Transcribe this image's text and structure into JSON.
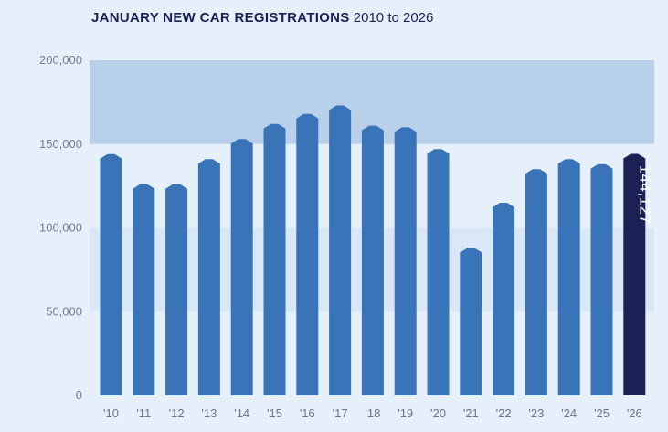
{
  "title": {
    "bold": "JANUARY NEW CAR REGISTRATIONS",
    "light": "2010 to 2026"
  },
  "colors": {
    "background": "#e6f0fb",
    "band_dark": "#b8d0ea",
    "band_light": "#d9e7f7",
    "bar": "#3a74b8",
    "highlight_bar": "#1b2154",
    "title": "#1b2154",
    "tick": "#777d86"
  },
  "chart_data": {
    "type": "bar",
    "title": "JANUARY NEW CAR REGISTRATIONS 2010 to 2026",
    "xlabel": "",
    "ylabel": "",
    "ylim": [
      0,
      200000
    ],
    "yticks": [
      0,
      50000,
      100000,
      150000,
      200000
    ],
    "ytick_labels": [
      "0",
      "50,000",
      "100,000",
      "150,000",
      "200,000"
    ],
    "grid": "alternating horizontal bands",
    "categories": [
      "'10",
      "'11",
      "'12",
      "'13",
      "'14",
      "'15",
      "'16",
      "'17",
      "'18",
      "'19",
      "'20",
      "'21",
      "'22",
      "'23",
      "'24",
      "'25",
      "'26"
    ],
    "values": [
      144000,
      126000,
      126000,
      141000,
      153000,
      162000,
      168000,
      173000,
      161000,
      160000,
      147000,
      88000,
      115000,
      135000,
      141000,
      138000,
      144127
    ],
    "highlight_index": 16,
    "data_labels": [
      {
        "index": 16,
        "text": "144,127"
      }
    ]
  }
}
